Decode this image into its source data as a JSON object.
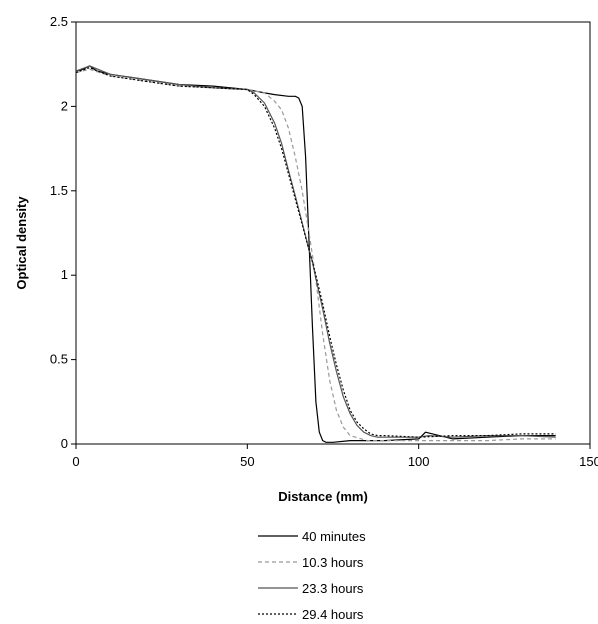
{
  "chart_data": {
    "type": "line",
    "title": "",
    "xlabel": "Distance (mm)",
    "ylabel": "Optical density",
    "xlim": [
      0,
      150
    ],
    "ylim": [
      0,
      2.5
    ],
    "x_ticks": [
      0,
      50,
      100,
      150
    ],
    "y_ticks": [
      0,
      0.5,
      1,
      1.5,
      2,
      2.5
    ],
    "x_tick_labels": [
      "0",
      "50",
      "100",
      "150"
    ],
    "y_tick_labels": [
      "0",
      "0.5",
      "1",
      "1.5",
      "2",
      "2.5"
    ],
    "grid": false,
    "legend_position": "bottom",
    "series": [
      {
        "name": "40 minutes",
        "color": "#000000",
        "dash": "solid",
        "x": [
          0,
          2,
          4,
          6,
          10,
          20,
          30,
          40,
          50,
          55,
          58,
          62,
          64,
          65,
          66,
          67,
          68,
          69,
          70,
          71,
          72,
          73,
          75,
          80,
          90,
          100,
          102,
          110,
          120,
          130,
          140
        ],
        "y": [
          2.21,
          2.22,
          2.24,
          2.21,
          2.19,
          2.16,
          2.13,
          2.12,
          2.1,
          2.08,
          2.07,
          2.06,
          2.06,
          2.05,
          2.0,
          1.7,
          1.2,
          0.7,
          0.25,
          0.07,
          0.02,
          0.01,
          0.01,
          0.02,
          0.02,
          0.03,
          0.07,
          0.03,
          0.04,
          0.05,
          0.05
        ]
      },
      {
        "name": "10.3 hours",
        "color": "#999999",
        "dash": "dashed",
        "x": [
          0,
          4,
          10,
          20,
          30,
          40,
          50,
          55,
          58,
          60,
          62,
          64,
          66,
          68,
          69,
          70,
          72,
          74,
          76,
          78,
          80,
          85,
          90,
          100,
          110,
          120,
          130,
          140
        ],
        "y": [
          2.2,
          2.22,
          2.18,
          2.15,
          2.12,
          2.11,
          2.1,
          2.08,
          2.03,
          1.98,
          1.87,
          1.7,
          1.5,
          1.25,
          1.12,
          0.97,
          0.65,
          0.38,
          0.2,
          0.1,
          0.05,
          0.02,
          0.02,
          0.02,
          0.02,
          0.02,
          0.03,
          0.03
        ]
      },
      {
        "name": "23.3 hours",
        "color": "#555555",
        "dash": "solid",
        "x": [
          0,
          4,
          10,
          20,
          30,
          40,
          50,
          52,
          55,
          58,
          60,
          62,
          64,
          66,
          68,
          69,
          70,
          72,
          74,
          76,
          78,
          80,
          82,
          84,
          86,
          88,
          90,
          100,
          103,
          110,
          120,
          130,
          140
        ],
        "y": [
          2.21,
          2.24,
          2.19,
          2.16,
          2.13,
          2.11,
          2.1,
          2.08,
          2.02,
          1.9,
          1.78,
          1.62,
          1.47,
          1.31,
          1.15,
          1.08,
          0.98,
          0.8,
          0.6,
          0.43,
          0.28,
          0.18,
          0.11,
          0.07,
          0.05,
          0.04,
          0.04,
          0.04,
          0.05,
          0.04,
          0.05,
          0.05,
          0.04
        ]
      },
      {
        "name": "29.4 hours",
        "color": "#000000",
        "dash": "dotted",
        "x": [
          0,
          4,
          10,
          20,
          30,
          40,
          50,
          52,
          55,
          58,
          60,
          62,
          64,
          66,
          68,
          69,
          70,
          72,
          74,
          76,
          78,
          80,
          82,
          84,
          86,
          88,
          90,
          100,
          110,
          120,
          130,
          140
        ],
        "y": [
          2.2,
          2.23,
          2.18,
          2.15,
          2.12,
          2.11,
          2.1,
          2.07,
          2.0,
          1.87,
          1.75,
          1.6,
          1.45,
          1.3,
          1.15,
          1.08,
          1.0,
          0.83,
          0.64,
          0.47,
          0.32,
          0.2,
          0.13,
          0.09,
          0.06,
          0.05,
          0.05,
          0.04,
          0.05,
          0.05,
          0.06,
          0.06
        ]
      }
    ]
  }
}
